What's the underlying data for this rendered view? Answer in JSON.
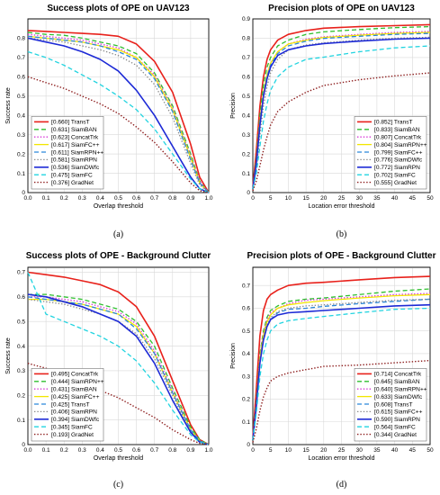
{
  "chart_data": [
    {
      "type": "line",
      "caption": "(a)",
      "title": "Success plots of OPE on UAV123",
      "xlabel": "Overlap threshold",
      "ylabel": "Success rate",
      "xlim": [
        0,
        1
      ],
      "ylim": [
        0,
        0.9
      ],
      "xticks": [
        "0.0",
        "0.1",
        "0.2",
        "0.3",
        "0.4",
        "0.5",
        "0.6",
        "0.7",
        "0.8",
        "0.9",
        "1.0"
      ],
      "yticks": [
        "0",
        "0.1",
        "0.2",
        "0.3",
        "0.4",
        "0.5",
        "0.6",
        "0.7",
        "0.8"
      ],
      "grid": true,
      "legend_position": "bottom-left",
      "x": [
        0,
        0.1,
        0.2,
        0.3,
        0.4,
        0.5,
        0.6,
        0.7,
        0.8,
        0.9,
        0.95,
        1.0
      ],
      "series": [
        {
          "name": "[0.660] TransT",
          "color": "#e8211b",
          "dash": "solid",
          "width": 1.6,
          "values": [
            0.84,
            0.835,
            0.83,
            0.825,
            0.82,
            0.81,
            0.77,
            0.68,
            0.52,
            0.25,
            0.08,
            0.0
          ]
        },
        {
          "name": "[0.631] SiamBAN",
          "color": "#2fbf2f",
          "dash": "dashed",
          "width": 1.3,
          "values": [
            0.83,
            0.82,
            0.815,
            0.8,
            0.78,
            0.76,
            0.72,
            0.62,
            0.45,
            0.2,
            0.06,
            0.0
          ]
        },
        {
          "name": "[0.623] ConcatTrk",
          "color": "#d633d6",
          "dash": "dotted",
          "width": 1.3,
          "values": [
            0.82,
            0.81,
            0.8,
            0.79,
            0.77,
            0.75,
            0.7,
            0.61,
            0.44,
            0.19,
            0.06,
            0.0
          ]
        },
        {
          "name": "[0.617] SiamFC++",
          "color": "#f2e600",
          "dash": "solid",
          "width": 1.3,
          "values": [
            0.81,
            0.8,
            0.79,
            0.78,
            0.76,
            0.74,
            0.7,
            0.6,
            0.43,
            0.18,
            0.05,
            0.0
          ]
        },
        {
          "name": "[0.611] SiamRPN++",
          "color": "#2b86d9",
          "dash": "dashed",
          "width": 1.3,
          "values": [
            0.81,
            0.8,
            0.79,
            0.78,
            0.76,
            0.73,
            0.69,
            0.59,
            0.42,
            0.17,
            0.05,
            0.0
          ]
        },
        {
          "name": "[0.581] SiamRPN",
          "color": "#8a8a8a",
          "dash": "dotted",
          "width": 1.3,
          "values": [
            0.8,
            0.79,
            0.78,
            0.76,
            0.74,
            0.71,
            0.66,
            0.56,
            0.39,
            0.15,
            0.04,
            0.0
          ]
        },
        {
          "name": "[0.536] SiamDWfc",
          "color": "#1d2ad6",
          "dash": "solid",
          "width": 1.6,
          "values": [
            0.8,
            0.78,
            0.76,
            0.73,
            0.69,
            0.63,
            0.53,
            0.4,
            0.24,
            0.08,
            0.02,
            0.0
          ]
        },
        {
          "name": "[0.475] SiamFC",
          "color": "#22d4e0",
          "dash": "dashed",
          "width": 1.3,
          "values": [
            0.73,
            0.7,
            0.66,
            0.61,
            0.56,
            0.5,
            0.43,
            0.33,
            0.2,
            0.07,
            0.02,
            0.0
          ]
        },
        {
          "name": "[0.376] GradNet",
          "color": "#8b1a1a",
          "dash": "dotted",
          "width": 1.4,
          "values": [
            0.6,
            0.57,
            0.54,
            0.5,
            0.46,
            0.41,
            0.34,
            0.26,
            0.16,
            0.05,
            0.01,
            0.0
          ]
        }
      ]
    },
    {
      "type": "line",
      "caption": "(b)",
      "title": "Precision plots of OPE on UAV123",
      "xlabel": "Location error threshold",
      "ylabel": "Precision",
      "xlim": [
        0,
        50
      ],
      "ylim": [
        0,
        0.9
      ],
      "xticks": [
        "0",
        "5",
        "10",
        "15",
        "20",
        "25",
        "30",
        "35",
        "40",
        "45",
        "50"
      ],
      "yticks": [
        "0",
        "0.1",
        "0.2",
        "0.3",
        "0.4",
        "0.5",
        "0.6",
        "0.7",
        "0.8",
        "0.9"
      ],
      "grid": true,
      "legend_position": "bottom-right",
      "x": [
        0,
        1,
        2,
        3,
        4,
        5,
        7,
        10,
        15,
        20,
        30,
        40,
        50
      ],
      "series": [
        {
          "name": "[0.852] TransT",
          "color": "#e8211b",
          "dash": "solid",
          "width": 1.6,
          "values": [
            0.03,
            0.22,
            0.45,
            0.6,
            0.69,
            0.74,
            0.79,
            0.82,
            0.84,
            0.852,
            0.86,
            0.865,
            0.87
          ]
        },
        {
          "name": "[0.833] SiamBAN",
          "color": "#2fbf2f",
          "dash": "dashed",
          "width": 1.3,
          "values": [
            0.02,
            0.18,
            0.4,
            0.56,
            0.65,
            0.7,
            0.76,
            0.79,
            0.82,
            0.833,
            0.845,
            0.855,
            0.86
          ]
        },
        {
          "name": "[0.807] ConcatTrk",
          "color": "#d633d6",
          "dash": "dotted",
          "width": 1.3,
          "values": [
            0.02,
            0.16,
            0.37,
            0.52,
            0.61,
            0.67,
            0.73,
            0.77,
            0.795,
            0.807,
            0.82,
            0.83,
            0.835
          ]
        },
        {
          "name": "[0.804] SiamRPN++",
          "color": "#f2e600",
          "dash": "solid",
          "width": 1.3,
          "values": [
            0.02,
            0.16,
            0.37,
            0.52,
            0.61,
            0.67,
            0.73,
            0.77,
            0.79,
            0.804,
            0.815,
            0.825,
            0.83
          ]
        },
        {
          "name": "[0.799] SiamFC++",
          "color": "#2b86d9",
          "dash": "dashed",
          "width": 1.3,
          "values": [
            0.02,
            0.16,
            0.36,
            0.51,
            0.6,
            0.66,
            0.72,
            0.76,
            0.785,
            0.799,
            0.81,
            0.82,
            0.825
          ]
        },
        {
          "name": "[0.776] SiamDWfc",
          "color": "#8a8a8a",
          "dash": "dotted",
          "width": 1.3,
          "values": [
            0.02,
            0.12,
            0.3,
            0.45,
            0.55,
            0.62,
            0.69,
            0.74,
            0.765,
            0.776,
            0.79,
            0.8,
            0.805
          ]
        },
        {
          "name": "[0.772] SiamRPN",
          "color": "#1d2ad6",
          "dash": "solid",
          "width": 1.6,
          "values": [
            0.02,
            0.15,
            0.35,
            0.5,
            0.59,
            0.65,
            0.71,
            0.74,
            0.76,
            0.772,
            0.785,
            0.795,
            0.8
          ]
        },
        {
          "name": "[0.702] SiamFC",
          "color": "#22d4e0",
          "dash": "dashed",
          "width": 1.3,
          "values": [
            0.02,
            0.1,
            0.24,
            0.37,
            0.46,
            0.53,
            0.6,
            0.65,
            0.69,
            0.702,
            0.73,
            0.75,
            0.76
          ]
        },
        {
          "name": "[0.555] GradNet",
          "color": "#8b1a1a",
          "dash": "dotted",
          "width": 1.4,
          "values": [
            0.01,
            0.06,
            0.14,
            0.22,
            0.29,
            0.35,
            0.42,
            0.47,
            0.52,
            0.555,
            0.585,
            0.605,
            0.62
          ]
        }
      ]
    },
    {
      "type": "line",
      "caption": "(c)",
      "title": "Success plots of OPE - Background Clutter",
      "xlabel": "Overlap threshold",
      "ylabel": "Success rate",
      "xlim": [
        0,
        1
      ],
      "ylim": [
        0,
        0.72
      ],
      "xticks": [
        "0.0",
        "0.1",
        "0.2",
        "0.3",
        "0.4",
        "0.5",
        "0.6",
        "0.7",
        "0.8",
        "0.9",
        "1.0"
      ],
      "yticks": [
        "0",
        "0.1",
        "0.2",
        "0.3",
        "0.4",
        "0.5",
        "0.6",
        "0.7"
      ],
      "grid": true,
      "legend_position": "bottom-left",
      "x": [
        0,
        0.1,
        0.2,
        0.3,
        0.4,
        0.5,
        0.6,
        0.7,
        0.8,
        0.9,
        0.95,
        1.0
      ],
      "series": [
        {
          "name": "[0.495] ConcatTrk",
          "color": "#e8211b",
          "dash": "solid",
          "width": 1.6,
          "values": [
            0.7,
            0.69,
            0.68,
            0.665,
            0.65,
            0.62,
            0.56,
            0.44,
            0.26,
            0.08,
            0.02,
            0.0
          ]
        },
        {
          "name": "[0.444] SiamRPN++",
          "color": "#2fbf2f",
          "dash": "dashed",
          "width": 1.3,
          "values": [
            0.61,
            0.61,
            0.6,
            0.59,
            0.57,
            0.55,
            0.5,
            0.4,
            0.23,
            0.07,
            0.02,
            0.0
          ]
        },
        {
          "name": "[0.431] SiamBAN",
          "color": "#d633d6",
          "dash": "dotted",
          "width": 1.3,
          "values": [
            0.6,
            0.6,
            0.59,
            0.58,
            0.56,
            0.54,
            0.49,
            0.38,
            0.22,
            0.06,
            0.015,
            0.0
          ]
        },
        {
          "name": "[0.425] SiamFC++",
          "color": "#f2e600",
          "dash": "solid",
          "width": 1.3,
          "values": [
            0.59,
            0.59,
            0.58,
            0.57,
            0.55,
            0.53,
            0.48,
            0.37,
            0.21,
            0.06,
            0.015,
            0.0
          ]
        },
        {
          "name": "[0.425] TransT",
          "color": "#2b86d9",
          "dash": "dashed",
          "width": 1.3,
          "values": [
            0.6,
            0.59,
            0.58,
            0.57,
            0.55,
            0.53,
            0.47,
            0.37,
            0.21,
            0.06,
            0.015,
            0.0
          ]
        },
        {
          "name": "[0.406] SiamRPN",
          "color": "#8a8a8a",
          "dash": "dotted",
          "width": 1.3,
          "values": [
            0.59,
            0.58,
            0.57,
            0.55,
            0.53,
            0.5,
            0.45,
            0.35,
            0.2,
            0.05,
            0.012,
            0.0
          ]
        },
        {
          "name": "[0.394] SiamDWfc",
          "color": "#1d2ad6",
          "dash": "solid",
          "width": 1.6,
          "values": [
            0.61,
            0.6,
            0.58,
            0.56,
            0.53,
            0.5,
            0.44,
            0.33,
            0.18,
            0.05,
            0.01,
            0.0
          ]
        },
        {
          "name": "[0.345] SiamFC",
          "color": "#22d4e0",
          "dash": "dashed",
          "width": 1.3,
          "values": [
            0.7,
            0.53,
            0.5,
            0.47,
            0.44,
            0.4,
            0.34,
            0.25,
            0.14,
            0.04,
            0.01,
            0.0
          ]
        },
        {
          "name": "[0.193] GradNet",
          "color": "#8b1a1a",
          "dash": "dotted",
          "width": 1.4,
          "values": [
            0.33,
            0.31,
            0.28,
            0.25,
            0.22,
            0.19,
            0.15,
            0.11,
            0.06,
            0.02,
            0.005,
            0.0
          ]
        }
      ]
    },
    {
      "type": "line",
      "caption": "(d)",
      "title": "Precision plots of OPE - Background Clutter",
      "xlabel": "Location error threshold",
      "ylabel": "Precision",
      "xlim": [
        0,
        50
      ],
      "ylim": [
        0,
        0.78
      ],
      "xticks": [
        "0",
        "5",
        "10",
        "15",
        "20",
        "25",
        "30",
        "35",
        "40",
        "45",
        "50"
      ],
      "yticks": [
        "0",
        "0.1",
        "0.2",
        "0.3",
        "0.4",
        "0.5",
        "0.6",
        "0.7"
      ],
      "grid": true,
      "legend_position": "bottom-right",
      "x": [
        0,
        1,
        2,
        3,
        4,
        5,
        7,
        10,
        15,
        20,
        30,
        40,
        50
      ],
      "series": [
        {
          "name": "[0.714] ConcatTrk",
          "color": "#e8211b",
          "dash": "solid",
          "width": 1.6,
          "values": [
            0.03,
            0.25,
            0.48,
            0.59,
            0.64,
            0.66,
            0.68,
            0.7,
            0.71,
            0.714,
            0.725,
            0.735,
            0.74
          ]
        },
        {
          "name": "[0.645] SiamBAN",
          "color": "#2fbf2f",
          "dash": "dashed",
          "width": 1.3,
          "values": [
            0.02,
            0.2,
            0.4,
            0.5,
            0.56,
            0.59,
            0.61,
            0.63,
            0.64,
            0.645,
            0.66,
            0.675,
            0.685
          ]
        },
        {
          "name": "[0.640] SiamRPN++",
          "color": "#d633d6",
          "dash": "dotted",
          "width": 1.3,
          "values": [
            0.02,
            0.19,
            0.39,
            0.49,
            0.55,
            0.58,
            0.6,
            0.62,
            0.635,
            0.64,
            0.65,
            0.66,
            0.665
          ]
        },
        {
          "name": "[0.633] SiamDWfc",
          "color": "#f2e600",
          "dash": "solid",
          "width": 1.3,
          "values": [
            0.02,
            0.18,
            0.38,
            0.48,
            0.54,
            0.57,
            0.6,
            0.615,
            0.625,
            0.633,
            0.645,
            0.655,
            0.66
          ]
        },
        {
          "name": "[0.608] TransT",
          "color": "#2b86d9",
          "dash": "dashed",
          "width": 1.3,
          "values": [
            0.02,
            0.17,
            0.36,
            0.46,
            0.52,
            0.55,
            0.58,
            0.595,
            0.6,
            0.608,
            0.62,
            0.63,
            0.64
          ]
        },
        {
          "name": "[0.615] SiamFC++",
          "color": "#8a8a8a",
          "dash": "dotted",
          "width": 1.3,
          "values": [
            0.02,
            0.17,
            0.37,
            0.47,
            0.53,
            0.56,
            0.585,
            0.6,
            0.61,
            0.615,
            0.625,
            0.635,
            0.64
          ]
        },
        {
          "name": "[0.590] SiamRPN",
          "color": "#1d2ad6",
          "dash": "solid",
          "width": 1.6,
          "values": [
            0.02,
            0.17,
            0.36,
            0.46,
            0.52,
            0.55,
            0.57,
            0.58,
            0.585,
            0.59,
            0.6,
            0.61,
            0.615
          ]
        },
        {
          "name": "[0.564] SiamFC",
          "color": "#22d4e0",
          "dash": "dashed",
          "width": 1.3,
          "values": [
            0.02,
            0.14,
            0.3,
            0.4,
            0.46,
            0.5,
            0.53,
            0.545,
            0.555,
            0.564,
            0.58,
            0.595,
            0.6
          ]
        },
        {
          "name": "[0.344] GradNet",
          "color": "#8b1a1a",
          "dash": "dotted",
          "width": 1.4,
          "values": [
            0.01,
            0.07,
            0.15,
            0.21,
            0.25,
            0.28,
            0.3,
            0.315,
            0.33,
            0.344,
            0.35,
            0.36,
            0.37
          ]
        }
      ]
    }
  ]
}
